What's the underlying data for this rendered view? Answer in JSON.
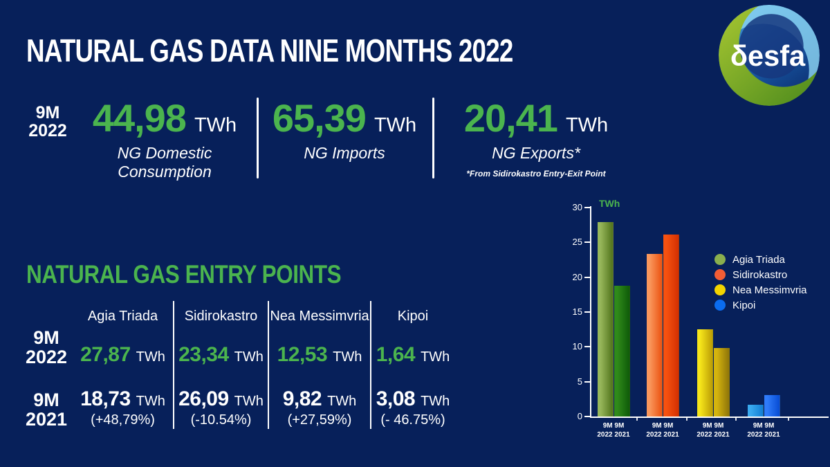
{
  "page": {
    "title": "NATURAL GAS DATA NINE MONTHS 2022"
  },
  "logo": {
    "text": "δesfa"
  },
  "colors": {
    "background": "#07205a",
    "accent_green": "#4bb44e",
    "text_white": "#ffffff"
  },
  "summary": {
    "period": {
      "line1": "9M",
      "line2": "2022"
    },
    "stats": [
      {
        "value": "44,98",
        "unit": "TWh",
        "label": "NG Domestic Consumption"
      },
      {
        "value": "65,39",
        "unit": "TWh",
        "label": "NG Imports"
      },
      {
        "value": "20,41",
        "unit": "TWh",
        "label": "NG Exports*",
        "footnote": "*From Sidirokastro Entry-Exit Point"
      }
    ]
  },
  "entry_points": {
    "title": "NATURAL GAS ENTRY POINTS",
    "columns": [
      "Agia Triada",
      "Sidirokastro",
      "Nea Messimvria",
      "Kipoi"
    ],
    "rows": [
      {
        "label": {
          "line1": "9M",
          "line2": "2022"
        },
        "cells": [
          {
            "value": "27,87",
            "unit": "TWh"
          },
          {
            "value": "23,34",
            "unit": "TWh"
          },
          {
            "value": "12,53",
            "unit": "TWh"
          },
          {
            "value": "1,64",
            "unit": "TWh"
          }
        ]
      },
      {
        "label": {
          "line1": "9M",
          "line2": "2021"
        },
        "cells": [
          {
            "value": "18,73",
            "unit": "TWh",
            "change": "(+48,79%)"
          },
          {
            "value": "26,09",
            "unit": "TWh",
            "change": "(-10.54%)"
          },
          {
            "value": "9,82",
            "unit": "TWh",
            "change": "(+27,59%)"
          },
          {
            "value": "3,08",
            "unit": "TWh",
            "change": "(- 46.75%)"
          }
        ]
      }
    ]
  },
  "chart_data": {
    "type": "bar",
    "title": "",
    "xlabel": "",
    "ylabel": "TWh",
    "ylim": [
      0,
      30
    ],
    "yticks": [
      0,
      5,
      10,
      15,
      20,
      25,
      30
    ],
    "grid": false,
    "legend_position": "right",
    "categories": [
      "Agia Triada",
      "Sidirokastro",
      "Nea Messimvria",
      "Kipoi"
    ],
    "series": [
      {
        "name": "9M 2022",
        "values": [
          27.87,
          23.34,
          12.53,
          1.64
        ]
      },
      {
        "name": "9M 2021",
        "values": [
          18.73,
          26.09,
          9.82,
          3.08
        ]
      }
    ],
    "x_group_label_line1": "9M 9M",
    "x_group_label_line2": "2022 2021",
    "legend": [
      {
        "label": "Agia Triada",
        "color": "#8aaf4e"
      },
      {
        "label": "Sidirokastro",
        "color": "#f25d35"
      },
      {
        "label": "Nea Messimvria",
        "color": "#f2d400"
      },
      {
        "label": "Kipoi",
        "color": "#0b6cf0"
      }
    ],
    "bar_gradients": [
      [
        [
          "#96b65a",
          "#55771f"
        ],
        [
          "#f9975c",
          "#ec5716"
        ],
        [
          "#f5e51a",
          "#bfa106"
        ],
        [
          "#39a9ee",
          "#1480d4"
        ]
      ],
      [
        [
          "#2f8a1a",
          "#115e0a"
        ],
        [
          "#f65110",
          "#d63203"
        ],
        [
          "#d4b40e",
          "#92790a"
        ],
        [
          "#2f7bfa",
          "#0a4fd6"
        ]
      ]
    ]
  }
}
